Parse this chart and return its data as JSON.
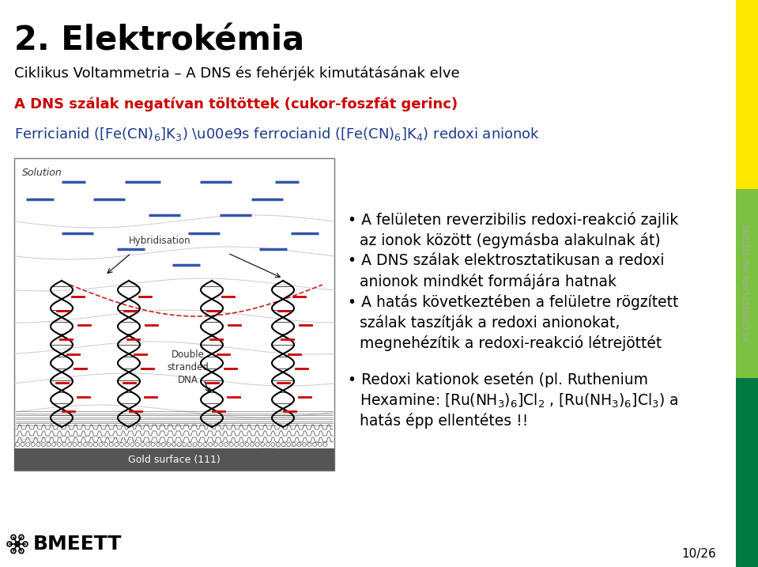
{
  "title": "2. Elektrokémia",
  "subtitle": "Ciklikus Voltammetria – A DNS és fehérjék kimutátásának elve",
  "red_line": "A DNS szálak negatívan töltöttek (cukor-foszfát gerinc)",
  "blue_line_1": "Ferricianid ([Fe(CN)",
  "blue_line_2": "]K",
  "blue_line_3": ") és ferrocianid ([Fe(CN)",
  "blue_line_4": "]K",
  "blue_line_5": ") redoxi anionok",
  "b1l1": "• A felületen reverzibilis redoxi-reakció zajlik",
  "b1l2": "az ionok között (egymásba alakulnak át)",
  "b2l1": "• A DNS szálak elektrosztatikusan a redoxi",
  "b2l2": "anionok mindkét formájára hatnak",
  "b3l1": "• A hatás következtében a felületre rögzített",
  "b3l2": "szálak taszítják a redoxi anionokat,",
  "b3l3": "megnehézítik a redoxi-reakció létrejöttét",
  "b4l1": "• Redoxi kationok esetén (pl. Ruthenium",
  "b4l2a": "Hexamine: [Ru(NH",
  "b4l2b": ")",
  "b4l2c": "]Cl",
  "b4l2d": " , [Ru(NH",
  "b4l2e": ")",
  "b4l2f": "]Cl",
  "b4l2g": ") a",
  "b4l3": "hatás épp ellentétes !!",
  "page_num": "10/26",
  "sidebar_colors": [
    "#FFE800",
    "#7DC142",
    "#007A40"
  ],
  "bg": "#FFFFFF",
  "title_color": "#000000",
  "red_color": "#CC0000",
  "blue_color": "#1A3A8C",
  "body_color": "#000000",
  "sidebar_text": "WE CONNECT CHIPS AND SYSTEMS",
  "sidebar_text_color": "#AAAAAA",
  "img_border": "#888888",
  "img_bg": "#FFFFFF"
}
